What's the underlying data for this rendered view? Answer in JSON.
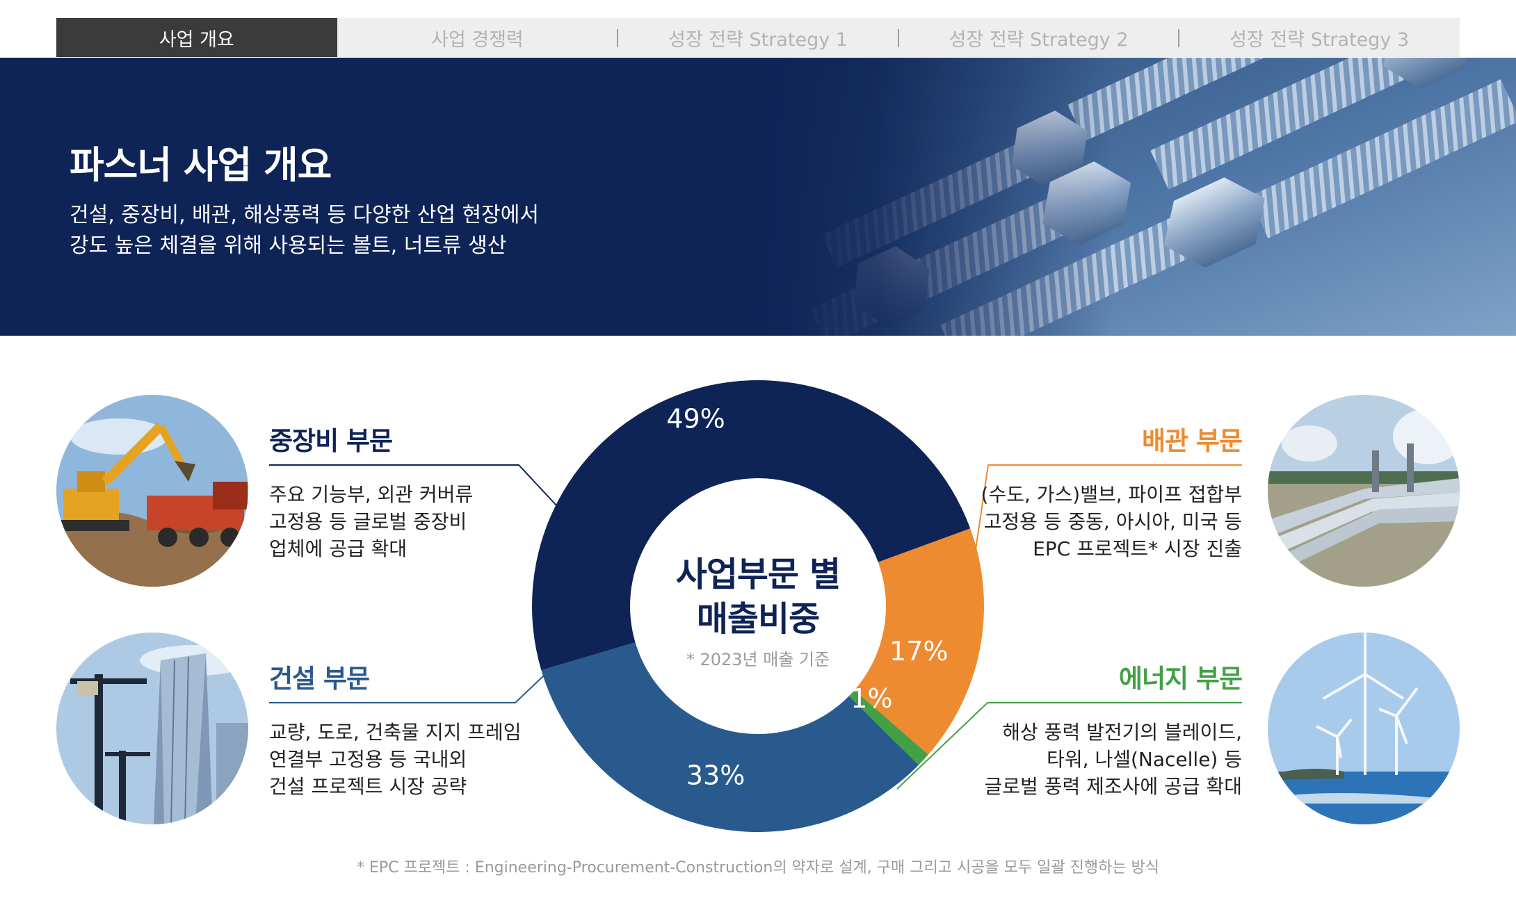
{
  "tabs": [
    {
      "label": "사업 개요",
      "active": true
    },
    {
      "label": "사업 경쟁력",
      "active": false
    },
    {
      "label": "성장 전략 Strategy 1",
      "active": false
    },
    {
      "label": "성장 전략 Strategy 2",
      "active": false
    },
    {
      "label": "성장 전략 Strategy 3",
      "active": false
    }
  ],
  "hero": {
    "title": "파스너 사업 개요",
    "desc_line1": "건설, 중장비, 배관, 해상풍력 등 다양한 산업 현장에서",
    "desc_line2": "강도 높은 체결을 위해 사용되는 볼트, 너트류 생산"
  },
  "segments": {
    "heavy": {
      "title": "중장비 부문",
      "lines": [
        "주요 기능부, 외관 커버류",
        "고정용 등 글로벌 중장비",
        "업체에 공급 확대"
      ]
    },
    "construction": {
      "title": "건설 부문",
      "lines": [
        "교량, 도로, 건축물 지지 프레임",
        "연결부 고정용 등 국내외",
        "건설 프로젝트 시장 공략"
      ]
    },
    "piping": {
      "title": "배관 부문",
      "lines": [
        "(수도, 가스)밸브, 파이프 접합부",
        "고정용 등 중동, 아시아, 미국 등",
        "EPC 프로젝트* 시장 진출"
      ]
    },
    "energy": {
      "title": "에너지 부문",
      "lines": [
        "해상 풍력 발전기의 블레이드,",
        "타워, 나셀(Nacelle) 등",
        "글로벌 풍력 제조사에 공급 확대"
      ]
    }
  },
  "chart_center": {
    "title_line1": "사업부문 별",
    "title_line2": "매출비중",
    "note": "* 2023년 매출 기준"
  },
  "chart_data": {
    "type": "pie",
    "title": "사업부문 별 매출비중",
    "subtitle": "* 2023년 매출 기준",
    "slices": [
      {
        "label": "중장비 부문",
        "value": 49,
        "display": "49%",
        "color": "#0e2356"
      },
      {
        "label": "배관 부문",
        "value": 17,
        "display": "17%",
        "color": "#ee8a30"
      },
      {
        "label": "에너지 부문",
        "value": 1,
        "display": "1%",
        "color": "#43a047"
      },
      {
        "label": "건설 부문",
        "value": 33,
        "display": "33%",
        "color": "#285a8e"
      }
    ]
  },
  "colors": {
    "navy": "#0e2356",
    "orange": "#ee8a30",
    "green": "#43a047",
    "blue": "#285a8e"
  },
  "footnote": "* EPC 프로젝트 : Engineering-Procurement-Construction의  약자로 설계, 구매 그리고 시공을 모두 일괄 진행하는 방식"
}
